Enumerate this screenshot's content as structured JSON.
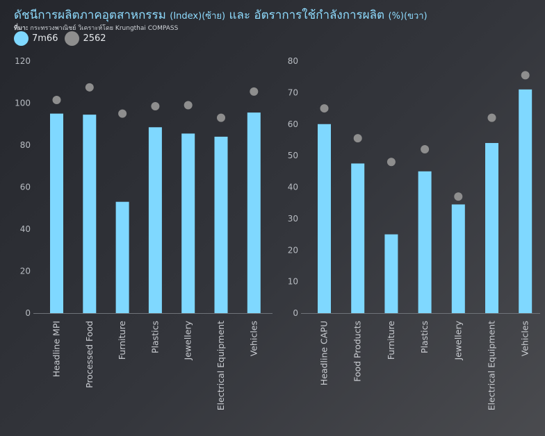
{
  "title": {
    "main": "ดัชนีการผลิตภาคอุตสาหกรรม",
    "left_note": "(Index)(ซ้าย)",
    "connector": "และ อัตราการใช้กำลังการผลิต",
    "right_note": "(%)(ขวา)"
  },
  "source": {
    "label": "ที่มา:",
    "text": "กระทรวงพาณิชย์ วิเคราะห์โดย Krungthai COMPASS"
  },
  "legend": [
    {
      "label": "7m66",
      "color": "#7fd8ff"
    },
    {
      "label": "2562",
      "color": "#8e8e8e"
    }
  ],
  "chart_data": [
    {
      "type": "bar",
      "categories": [
        "Headline MPI",
        "Processed Food",
        "Furniture",
        "Plastics",
        "Jewellery",
        "Electrical Equipment",
        "Vehicles"
      ],
      "series": [
        {
          "name": "7m66",
          "kind": "bar",
          "color": "#7fd8ff",
          "values": [
            95,
            94.5,
            53,
            88.5,
            85.5,
            84,
            95.5
          ]
        },
        {
          "name": "2562",
          "kind": "dot",
          "color": "#8e8e8e",
          "values": [
            101.5,
            107.5,
            95,
            98.5,
            99,
            93,
            105.5
          ]
        }
      ],
      "ylim": [
        0,
        120
      ],
      "yticks": [
        0,
        20,
        40,
        60,
        80,
        100,
        120
      ],
      "grid": false
    },
    {
      "type": "bar",
      "categories": [
        "Headline CAPU",
        "Food Products",
        "Furniture",
        "Plastics",
        "Jewellery",
        "Electrical Equipment",
        "Vehicles"
      ],
      "series": [
        {
          "name": "7m66",
          "kind": "bar",
          "color": "#7fd8ff",
          "values": [
            60,
            47.5,
            25,
            45,
            34.5,
            54,
            71
          ]
        },
        {
          "name": "2562",
          "kind": "dot",
          "color": "#8e8e8e",
          "values": [
            65,
            55.5,
            48,
            52,
            37,
            62,
            75.5
          ]
        }
      ],
      "ylim": [
        0,
        80
      ],
      "yticks": [
        0,
        10,
        20,
        30,
        40,
        50,
        60,
        70,
        80
      ],
      "grid": false
    }
  ]
}
